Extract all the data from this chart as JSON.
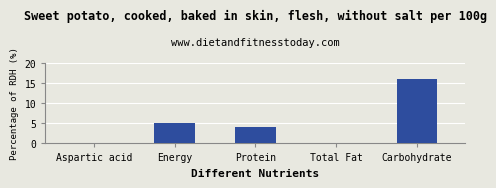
{
  "title": "Sweet potato, cooked, baked in skin, flesh, without salt per 100g",
  "subtitle": "www.dietandfitnesstoday.com",
  "xlabel": "Different Nutrients",
  "ylabel": "Percentage of RDH (%)",
  "categories": [
    "Aspartic acid",
    "Energy",
    "Protein",
    "Total Fat",
    "Carbohydrate"
  ],
  "values": [
    0.0,
    5.0,
    4.0,
    0.1,
    16.2
  ],
  "bar_color": "#2e4d9e",
  "ylim": [
    0,
    20
  ],
  "yticks": [
    0,
    5,
    10,
    15,
    20
  ],
  "background_color": "#e8e8e0",
  "title_fontsize": 8.5,
  "subtitle_fontsize": 7.5,
  "xlabel_fontsize": 8,
  "ylabel_fontsize": 6.5,
  "tick_fontsize": 7,
  "grid_color": "#ffffff",
  "border_color": "#888888"
}
